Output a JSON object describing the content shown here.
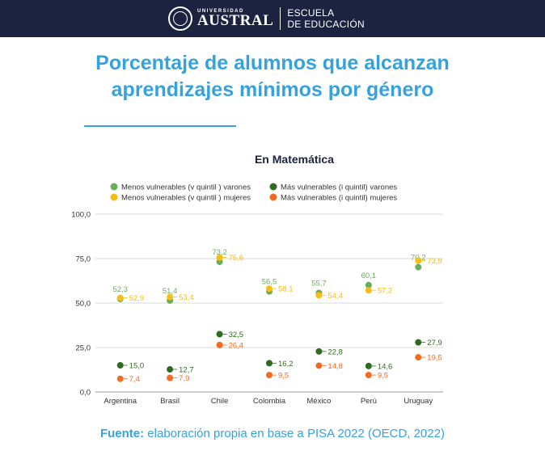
{
  "header": {
    "university_small": "UNIVERSIDAD",
    "university_name": "AUSTRAL",
    "school_line1": "ESCUELA",
    "school_line2": "DE EDUCACIÓN"
  },
  "title_line1": "Porcentaje de alumnos que alcanzan",
  "title_line2": "aprendizajes mínimos por género",
  "source_label": "Fuente:",
  "source_text": "elaboración propia en base a PISA 2022 (OECD, 2022)",
  "colors": {
    "accent": "#36a2dc",
    "header_bg": "#1c2340",
    "title_dark": "#1c2340"
  },
  "chart_data": {
    "type": "scatter",
    "title": "En Matemática",
    "categories": [
      "Argentina",
      "Brasil",
      "Chile",
      "Colombia",
      "México",
      "Perú",
      "Uruguay"
    ],
    "y_ticks": [
      "0,0",
      "25,0",
      "50,0",
      "75,0",
      "100,0"
    ],
    "ylim": [
      0,
      100
    ],
    "grid": true,
    "legend_position": "top",
    "series": [
      {
        "name": "Menos vulnerables (v quintil ) varones",
        "color": "#6aad5a",
        "values": [
          52.3,
          51.4,
          73.2,
          56.5,
          55.7,
          60.1,
          70.2
        ],
        "labels": [
          "52,3",
          "51,4",
          "73,2",
          "56,5",
          "55,7",
          "60,1",
          "70,2"
        ],
        "label_side": "above"
      },
      {
        "name": "Más vulnerables (i quintil) varones",
        "color": "#2e6b1e",
        "values": [
          15.0,
          12.7,
          32.5,
          16.2,
          22.8,
          14.6,
          27.9
        ],
        "labels": [
          "15,0",
          "12,7",
          "32,5",
          "16,2",
          "22,8",
          "14,6",
          "27,9"
        ],
        "label_side": "right"
      },
      {
        "name": "Menos vulnerables (v quintil ) mujeres",
        "color": "#f6bd16",
        "values": [
          52.9,
          53.4,
          75.6,
          58.1,
          54.4,
          57.2,
          73.9
        ],
        "labels": [
          "52,9",
          "53,4",
          "75,6",
          "58,1",
          "54,4",
          "57,2",
          "73,9"
        ],
        "label_side": "right"
      },
      {
        "name": "Más vulnerables (i quintil) mujeres",
        "color": "#f26b21",
        "values": [
          7.4,
          7.9,
          26.4,
          9.5,
          14.8,
          9.5,
          19.5
        ],
        "labels": [
          "7,4",
          "7,9",
          "26,4",
          "9,5",
          "14,8",
          "9,5",
          "19,5"
        ],
        "label_side": "right"
      }
    ]
  }
}
